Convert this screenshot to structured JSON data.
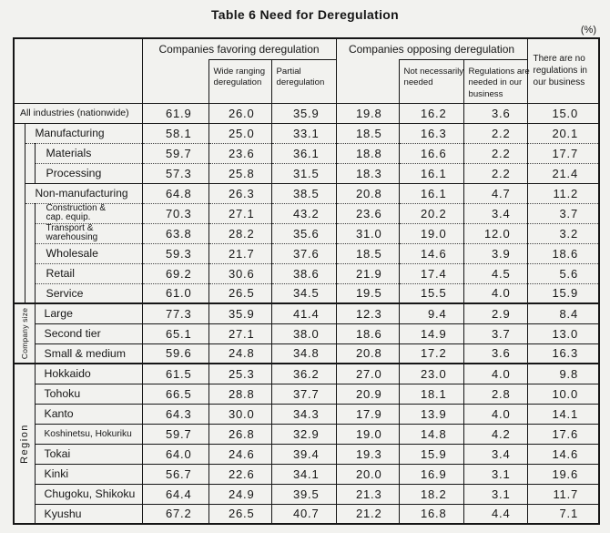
{
  "title": "Table 6 Need for Deregulation",
  "unit_label": "(%)",
  "header": {
    "favoring_group": "Companies favoring deregulation",
    "favoring_sub1": [
      "Wide ranging",
      "deregulation"
    ],
    "favoring_sub2": [
      "Partial",
      "deregulation"
    ],
    "opposing_group": "Companies opposing deregulation",
    "opposing_sub1": [
      "Not necessarily",
      "needed"
    ],
    "opposing_sub2": [
      "Regulations are",
      "needed in our",
      "business"
    ],
    "no_regulations": [
      "There are no",
      "regulations in",
      "our business"
    ]
  },
  "vlabels": {
    "company_size": {
      "text": "Company size",
      "rows": 3,
      "small": true
    },
    "region": {
      "text": "Region",
      "rows": 8,
      "small": false
    }
  },
  "rows": [
    {
      "label": "All industries (nationwide)",
      "indent": 0,
      "top": "solid",
      "values": [
        "61.9",
        "26.0",
        "35.9",
        "19.8",
        "16.2",
        "3.6",
        "15.0"
      ]
    },
    {
      "label": "Manufacturing",
      "indent": 1,
      "top": "solid",
      "stripA": 9,
      "values": [
        "58.1",
        "25.0",
        "33.1",
        "18.5",
        "16.3",
        "2.2",
        "20.1"
      ]
    },
    {
      "label": "Materials",
      "indent": 2,
      "top": "dotted",
      "stripB": 2,
      "values": [
        "59.7",
        "23.6",
        "36.1",
        "18.8",
        "16.6",
        "2.2",
        "17.7"
      ]
    },
    {
      "label": "Processing",
      "indent": 2,
      "top": "dotted",
      "values": [
        "57.3",
        "25.8",
        "31.5",
        "18.3",
        "16.1",
        "2.2",
        "21.4"
      ]
    },
    {
      "label": "Non-manufacturing",
      "indent": 1,
      "top": "solid",
      "values": [
        "64.8",
        "26.3",
        "38.5",
        "20.8",
        "16.1",
        "4.7",
        "11.2"
      ]
    },
    {
      "label": "Construction &\ncap. equip.",
      "indent": 2,
      "top": "dotted",
      "stripB": 5,
      "small": true,
      "values": [
        "70.3",
        "27.1",
        "43.2",
        "23.6",
        "20.2",
        "3.4",
        "3.7"
      ]
    },
    {
      "label": "Transport &\nwarehousing",
      "indent": 2,
      "top": "dotted",
      "small": true,
      "values": [
        "63.8",
        "28.2",
        "35.6",
        "31.0",
        "19.0",
        "12.0",
        "3.2"
      ]
    },
    {
      "label": "Wholesale",
      "indent": 2,
      "top": "dotted",
      "values": [
        "59.3",
        "21.7",
        "37.6",
        "18.5",
        "14.6",
        "3.9",
        "18.6"
      ]
    },
    {
      "label": "Retail",
      "indent": 2,
      "top": "dotted",
      "values": [
        "69.2",
        "30.6",
        "38.6",
        "21.9",
        "17.4",
        "4.5",
        "5.6"
      ]
    },
    {
      "label": "Service",
      "indent": 2,
      "top": "dotted",
      "values": [
        "61.0",
        "26.5",
        "34.5",
        "19.5",
        "15.5",
        "4.0",
        "15.9"
      ]
    },
    {
      "label": "Large",
      "indent": "v",
      "top": "section",
      "vlabel": "company_size",
      "values": [
        "77.3",
        "35.9",
        "41.4",
        "12.3",
        "9.4",
        "2.9",
        "8.4"
      ]
    },
    {
      "label": "Second tier",
      "indent": "v",
      "top": "solid",
      "values": [
        "65.1",
        "27.1",
        "38.0",
        "18.6",
        "14.9",
        "3.7",
        "13.0"
      ]
    },
    {
      "label": "Small & medium",
      "indent": "v",
      "top": "solid",
      "values": [
        "59.6",
        "24.8",
        "34.8",
        "20.8",
        "17.2",
        "3.6",
        "16.3"
      ]
    },
    {
      "label": "Hokkaido",
      "indent": "v",
      "top": "section",
      "vlabel": "region",
      "values": [
        "61.5",
        "25.3",
        "36.2",
        "27.0",
        "23.0",
        "4.0",
        "9.8"
      ]
    },
    {
      "label": "Tohoku",
      "indent": "v",
      "top": "solid",
      "values": [
        "66.5",
        "28.8",
        "37.7",
        "20.9",
        "18.1",
        "2.8",
        "10.0"
      ]
    },
    {
      "label": "Kanto",
      "indent": "v",
      "top": "solid",
      "values": [
        "64.3",
        "30.0",
        "34.3",
        "17.9",
        "13.9",
        "4.0",
        "14.1"
      ]
    },
    {
      "label": "Koshinetsu, Hokuriku",
      "indent": "v",
      "top": "solid",
      "condensed": true,
      "values": [
        "59.7",
        "26.8",
        "32.9",
        "19.0",
        "14.8",
        "4.2",
        "17.6"
      ]
    },
    {
      "label": "Tokai",
      "indent": "v",
      "top": "solid",
      "values": [
        "64.0",
        "24.6",
        "39.4",
        "19.3",
        "15.9",
        "3.4",
        "14.6"
      ]
    },
    {
      "label": "Kinki",
      "indent": "v",
      "top": "solid",
      "values": [
        "56.7",
        "22.6",
        "34.1",
        "20.0",
        "16.9",
        "3.1",
        "19.6"
      ]
    },
    {
      "label": "Chugoku, Shikoku",
      "indent": "v",
      "top": "solid",
      "values": [
        "64.4",
        "24.9",
        "39.5",
        "21.3",
        "18.2",
        "3.1",
        "11.7"
      ]
    },
    {
      "label": "Kyushu",
      "indent": "v",
      "top": "solid",
      "values": [
        "67.2",
        "26.5",
        "40.7",
        "21.2",
        "16.8",
        "4.4",
        "7.1"
      ]
    }
  ]
}
